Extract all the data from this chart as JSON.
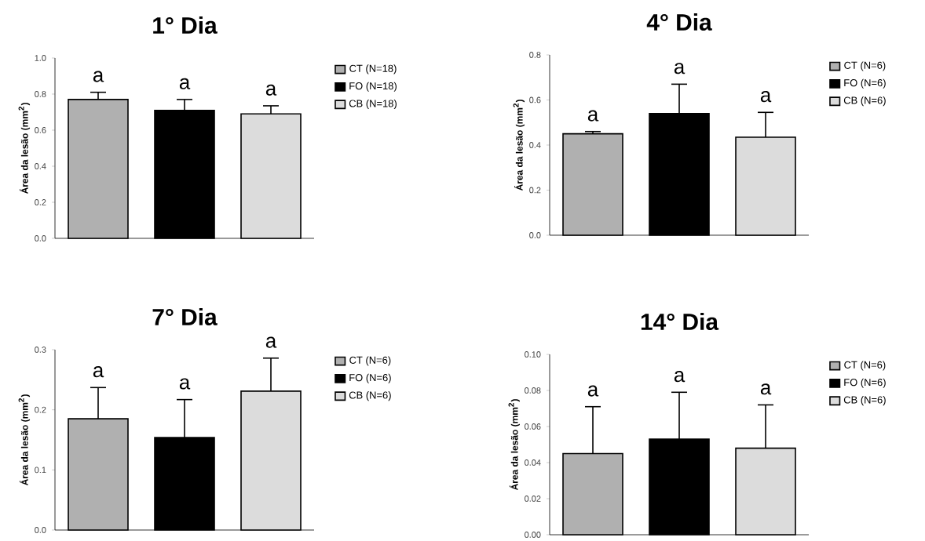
{
  "chart_data": [
    {
      "type": "bar",
      "title": "1° Dia",
      "ylabel": "Área da lesão (mm$^{2}$)",
      "categories": [
        null
      ],
      "legend": "right",
      "tick_labels": "y",
      "ylim": [
        0,
        1.0
      ],
      "yticks": [
        {
          "value": 0,
          "label": "0.0"
        },
        {
          "value": 0.2,
          "label": "0.2"
        },
        {
          "value": 0.4,
          "label": "0.4"
        },
        {
          "value": 0.6,
          "label": "0.6"
        },
        {
          "value": 0.8,
          "label": "0.8"
        },
        {
          "value": 1.0,
          "label": "1.0"
        }
      ],
      "series": [
        {
          "name": "CT (N=18)",
          "color": "#b0b0b0",
          "values": [
            0.77
          ],
          "errors": [
            0.04
          ],
          "value_labels": [
            "a"
          ]
        },
        {
          "name": "FO (N=18)",
          "color": "#000000",
          "values": [
            0.71
          ],
          "errors": [
            0.06
          ],
          "value_labels": [
            "a"
          ]
        },
        {
          "name": "CB (N=18)",
          "color": "#dcdcdc",
          "values": [
            0.69
          ],
          "errors": [
            0.045
          ],
          "value_labels": [
            "a"
          ]
        }
      ]
    },
    {
      "type": "bar",
      "title": "4° Dia",
      "ylabel": "Área da lesão (mm$^{2}$)",
      "categories": [
        null
      ],
      "legend": "right",
      "tick_labels": "y",
      "ylim": [
        0,
        0.8
      ],
      "yticks": [
        {
          "value": 0,
          "label": "0.0"
        },
        {
          "value": 0.2,
          "label": "0.2"
        },
        {
          "value": 0.4,
          "label": "0.4"
        },
        {
          "value": 0.6,
          "label": "0.6"
        },
        {
          "value": 0.8,
          "label": "0.8"
        }
      ],
      "series": [
        {
          "name": "CT (N=6)",
          "color": "#b0b0b0",
          "values": [
            0.45
          ],
          "errors": [
            0.01
          ],
          "value_labels": [
            "a"
          ]
        },
        {
          "name": "FO (N=6)",
          "color": "#000000",
          "values": [
            0.54
          ],
          "errors": [
            0.13
          ],
          "value_labels": [
            "a"
          ]
        },
        {
          "name": "CB (N=6)",
          "color": "#dcdcdc",
          "values": [
            0.435
          ],
          "errors": [
            0.11
          ],
          "value_labels": [
            "a"
          ]
        }
      ]
    },
    {
      "type": "bar",
      "title": "7° Dia",
      "ylabel": "Área da lesão (mm$^{2}$)",
      "categories": [
        null
      ],
      "legend": "right",
      "tick_labels": "y",
      "ylim": [
        0,
        0.3
      ],
      "yticks": [
        {
          "value": 0,
          "label": "0.0"
        },
        {
          "value": 0.1,
          "label": "0.1"
        },
        {
          "value": 0.2,
          "label": "0.2"
        },
        {
          "value": 0.3,
          "label": "0.3"
        }
      ],
      "series": [
        {
          "name": "CT (N=6)",
          "color": "#b0b0b0",
          "values": [
            0.185
          ],
          "errors": [
            0.052
          ],
          "value_labels": [
            "a"
          ]
        },
        {
          "name": "FO (N=6)",
          "color": "#000000",
          "values": [
            0.154
          ],
          "errors": [
            0.063
          ],
          "value_labels": [
            "a"
          ]
        },
        {
          "name": "CB (N=6)",
          "color": "#dcdcdc",
          "values": [
            0.231
          ],
          "errors": [
            0.055
          ],
          "value_labels": [
            "a"
          ]
        }
      ]
    },
    {
      "type": "bar",
      "title": "14° Dia",
      "ylabel": "Área da lesão (mm$^{2}$)",
      "categories": [
        null
      ],
      "legend": "right",
      "tick_labels": "y",
      "ylim": [
        0,
        0.1
      ],
      "yticks": [
        {
          "value": 0,
          "label": "0.00"
        },
        {
          "value": 0.02,
          "label": "0.02"
        },
        {
          "value": 0.04,
          "label": "0.04"
        },
        {
          "value": 0.06,
          "label": "0.06"
        },
        {
          "value": 0.08,
          "label": "0.08"
        },
        {
          "value": 0.1,
          "label": "0.10"
        }
      ],
      "series": [
        {
          "name": "CT (N=6)",
          "color": "#b0b0b0",
          "values": [
            0.045
          ],
          "errors": [
            0.026
          ],
          "value_labels": [
            "a"
          ]
        },
        {
          "name": "FO (N=6)",
          "color": "#000000",
          "values": [
            0.053
          ],
          "errors": [
            0.026
          ],
          "value_labels": [
            "a"
          ]
        },
        {
          "name": "CB (N=6)",
          "color": "#dcdcdc",
          "values": [
            0.048
          ],
          "errors": [
            0.024
          ],
          "value_labels": [
            "a"
          ]
        }
      ]
    }
  ]
}
